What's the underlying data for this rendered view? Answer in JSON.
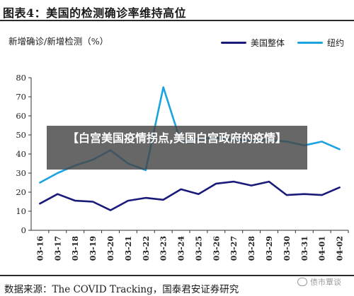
{
  "figure_title": "图表4：美国的检测确诊率维持高位",
  "source_text": "数据来源：The COVID Tracking，国泰君安证券研究",
  "overlay_text": "【白宫美国疫情拐点,美国白宫政府的疫情】",
  "watermark_text": "债市覃谈",
  "chart_data": {
    "type": "line",
    "ylabel": "新增确诊/新增检测（%）",
    "ylim": [
      0,
      80
    ],
    "yticks": [
      0,
      10,
      20,
      30,
      40,
      50,
      60,
      70,
      80
    ],
    "categories": [
      "03-16",
      "03-17",
      "03-18",
      "03-19",
      "03-20",
      "03-21",
      "03-22",
      "03-23",
      "03-24",
      "03-25",
      "03-26",
      "03-27",
      "03-28",
      "03-29",
      "03-30",
      "03-31",
      "04-01",
      "04-02"
    ],
    "series": [
      {
        "name": "美国整体",
        "color": "#1a1a7a",
        "values": [
          14.0,
          19.0,
          15.5,
          15.0,
          10.5,
          15.5,
          17.0,
          16.0,
          21.5,
          19.0,
          24.5,
          25.5,
          23.5,
          25.5,
          18.5,
          19.0,
          18.5,
          22.5
        ]
      },
      {
        "name": "纽约",
        "color": "#1ba3e0",
        "values": [
          25.0,
          30.0,
          34.0,
          37.0,
          42.0,
          35.0,
          31.5,
          75.0,
          46.0,
          48.0,
          48.5,
          47.5,
          47.0,
          47.5,
          46.5,
          44.5,
          46.5,
          42.5
        ]
      }
    ],
    "legend_position": "top-right",
    "grid": false
  }
}
